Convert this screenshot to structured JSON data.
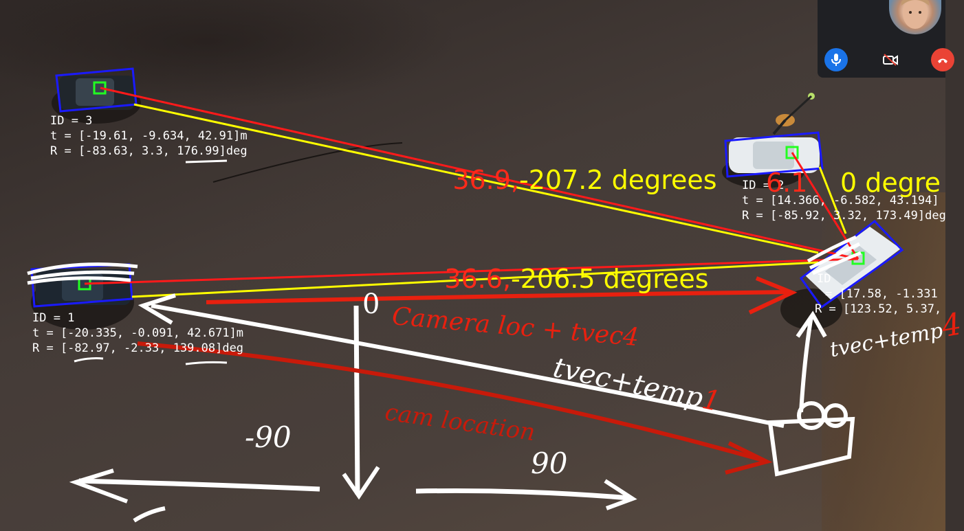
{
  "markers": [
    {
      "id_label": "ID = 3",
      "t_label": "t = [-19.61, -9.634, 42.91]m",
      "r_label": "R = [-83.63, 3.3, 176.99]deg"
    },
    {
      "id_label": "ID = 2",
      "t_label": "t = [14.366, -6.582, 43.194]",
      "r_label": "R = [-85.92, 3.32, 173.49]deg"
    },
    {
      "id_label": "ID = 1",
      "t_label": "t = [-20.335, -0.091, 42.671]m",
      "r_label": "R = [-82.97, -2.33, 139.08]deg"
    },
    {
      "id_label": "ID",
      "t_label": "= [17.58, -1.331",
      "r_label": "R = [123.52, 5.37,"
    }
  ],
  "measurements": {
    "m1_red": "36.9,",
    "m1_yellow": "-207.2 degrees",
    "m2_red": "36.6,",
    "m2_yellow": "-206.5 degrees",
    "m3_red": "6.1",
    "m3_yellow": "0 degre"
  },
  "annotations": {
    "zero": "0",
    "minus_ninety": "-90",
    "ninety": "90",
    "tvec_temp": "tvec+temp",
    "tvec_temp_index": "1",
    "camera_loc": "Camera loc + tvec4",
    "cam_location": "cam location",
    "tvec_temp4": "tvec+temp",
    "tvec_temp4_index": "4"
  },
  "colors": {
    "red_line": "#ff1a1a",
    "yellow_line": "#ffff00",
    "bbox_blue": "#1a1aff",
    "marker_green": "#22ff22",
    "ink_white": "#ffffff",
    "ink_red": "#e8200f"
  },
  "call_controls": {
    "mic": "microphone-icon",
    "camera": "camera-off-icon",
    "hangup": "hangup-icon"
  }
}
